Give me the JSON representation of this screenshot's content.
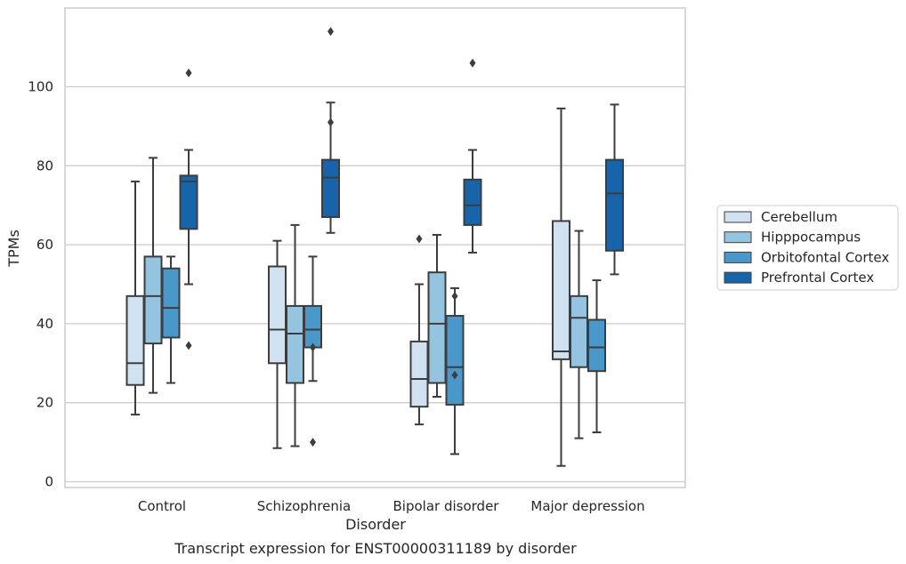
{
  "chart_data": {
    "type": "box",
    "caption": "Transcript expression for ENST00000311189 by disorder",
    "xlabel": "Disorder",
    "ylabel": "TPMs",
    "ylim": [
      -1.5,
      120
    ],
    "yticks": [
      0,
      20,
      40,
      60,
      80,
      100
    ],
    "grid": "horizontal",
    "legend_position": "right",
    "categories": [
      "Control",
      "Schizophrenia",
      "Bipolar disorder",
      "Major depression"
    ],
    "series": [
      {
        "name": "Cerebellum",
        "color": "#d0e1f1",
        "boxes": [
          {
            "whisker_low": 17,
            "q1": 24.5,
            "median": 30,
            "q3": 47,
            "whisker_high": 76,
            "outliers": []
          },
          {
            "whisker_low": 8.5,
            "q1": 30,
            "median": 38.5,
            "q3": 54.5,
            "whisker_high": 61,
            "outliers": []
          },
          {
            "whisker_low": 14.5,
            "q1": 19,
            "median": 26,
            "q3": 35.5,
            "whisker_high": 50,
            "outliers": [
              61.5
            ]
          },
          {
            "whisker_low": 4,
            "q1": 31,
            "median": 33,
            "q3": 66,
            "whisker_high": 94.5,
            "outliers": []
          }
        ]
      },
      {
        "name": "Hipppocampus",
        "color": "#94c4df",
        "boxes": [
          {
            "whisker_low": 22.5,
            "q1": 35,
            "median": 47,
            "q3": 57,
            "whisker_high": 82,
            "outliers": []
          },
          {
            "whisker_low": 9,
            "q1": 25,
            "median": 37.5,
            "q3": 44.5,
            "whisker_high": 65,
            "outliers": []
          },
          {
            "whisker_low": 21.5,
            "q1": 25,
            "median": 40,
            "q3": 53,
            "whisker_high": 62.5,
            "outliers": []
          },
          {
            "whisker_low": 11,
            "q1": 29,
            "median": 41.5,
            "q3": 47,
            "whisker_high": 63.5,
            "outliers": []
          }
        ]
      },
      {
        "name": "Orbitofontal Cortex",
        "color": "#4a98c9",
        "boxes": [
          {
            "whisker_low": 25,
            "q1": 36.5,
            "median": 44,
            "q3": 54,
            "whisker_high": 57,
            "outliers": []
          },
          {
            "whisker_low": 25.5,
            "q1": 34,
            "median": 38.5,
            "q3": 44.5,
            "whisker_high": 57,
            "outliers": [
              34,
              10
            ]
          },
          {
            "whisker_low": 7,
            "q1": 19.5,
            "median": 29,
            "q3": 42,
            "whisker_high": 49,
            "outliers": [
              47,
              27
            ]
          },
          {
            "whisker_low": 12.5,
            "q1": 28,
            "median": 34,
            "q3": 41,
            "whisker_high": 51,
            "outliers": []
          }
        ]
      },
      {
        "name": "Prefrontal Cortex",
        "color": "#1764ab",
        "boxes": [
          {
            "whisker_low": 50,
            "q1": 64,
            "median": 76,
            "q3": 77.5,
            "whisker_high": 84,
            "outliers": [
              103.5,
              34.5
            ]
          },
          {
            "whisker_low": 63,
            "q1": 67,
            "median": 77,
            "q3": 81.5,
            "whisker_high": 96,
            "outliers": [
              114,
              91
            ]
          },
          {
            "whisker_low": 58,
            "q1": 65,
            "median": 70,
            "q3": 76.5,
            "whisker_high": 84,
            "outliers": [
              106
            ]
          },
          {
            "whisker_low": 52.5,
            "q1": 58.5,
            "median": 73,
            "q3": 81.5,
            "whisker_high": 95.5,
            "outliers": []
          }
        ]
      }
    ]
  }
}
